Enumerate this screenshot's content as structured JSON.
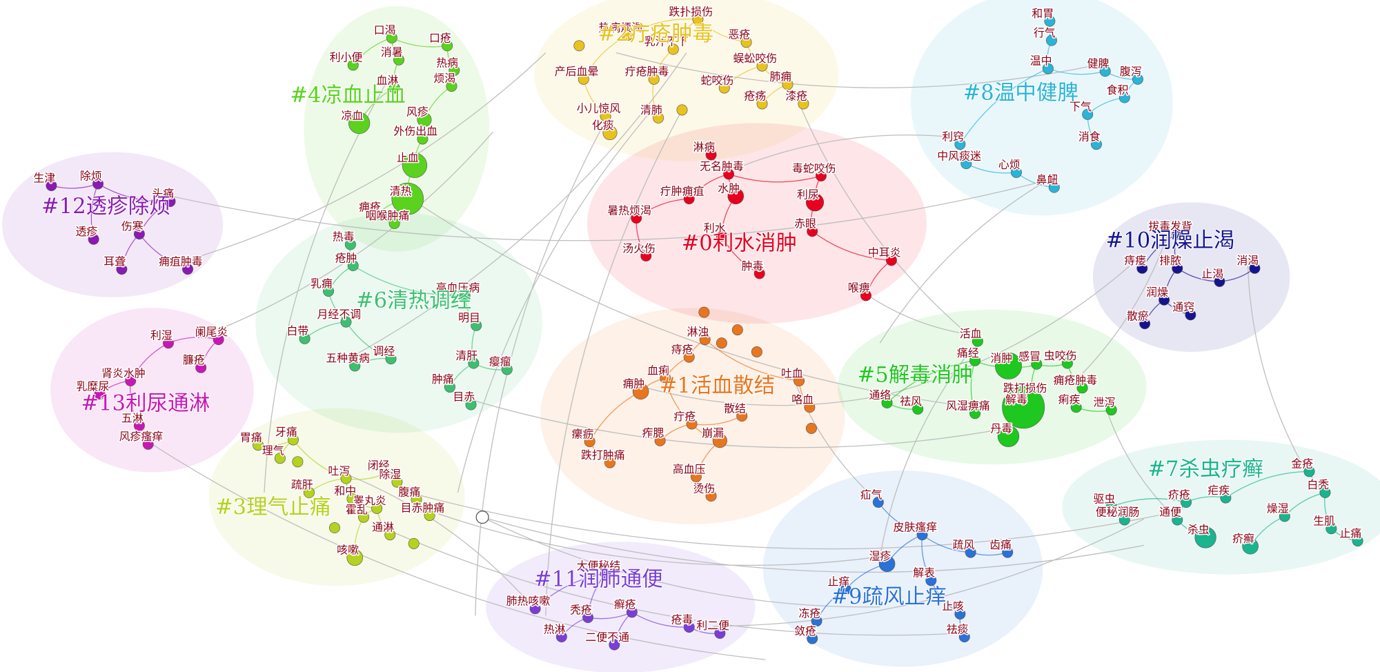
{
  "clusters": [
    {
      "label": "#0利水消肿",
      "color": "#e8001f",
      "nodes": [
        "淋病",
        "无名肿毒",
        "毒蛇咬伤",
        "疔肿痈疽",
        "水肿",
        "利尿",
        "暑热烦渴",
        "利水",
        "赤眼",
        "汤火伤",
        "中耳炎",
        "肿毒",
        "喉痹"
      ]
    },
    {
      "label": "#1活血散结",
      "color": "#e8761e",
      "nodes": [
        "淋浊",
        "痔疮",
        "血痢",
        "痈肿",
        "吐血",
        "咯血",
        "疔疮",
        "散结",
        "瘰疬",
        "痄腮",
        "崩漏",
        "跌打肿痛",
        "高血压",
        "烫伤"
      ]
    },
    {
      "label": "#2疔疮肿毒",
      "color": "#e8c21e",
      "nodes": [
        "跌扑损伤",
        "热病烦渴",
        "恶疮",
        "乳汁不下",
        "蜈蚣咬伤",
        "产后血晕",
        "疔疮肿毒",
        "肺痈",
        "蛇咬伤",
        "疮疡",
        "漆疮",
        "小儿惊风",
        "清肺",
        "化痰"
      ]
    },
    {
      "label": "#3理气止痛",
      "color": "#b4d21e",
      "nodes": [
        "胃痛",
        "牙痛",
        "理气",
        "吐泻",
        "闭经",
        "除湿",
        "疏肝",
        "和中",
        "腹痛",
        "睾丸炎",
        "霍乱",
        "目赤肿痛",
        "通淋",
        "咳嗽"
      ]
    },
    {
      "label": "#4凉血止血",
      "color": "#5ad21e",
      "nodes": [
        "口渴",
        "口疮",
        "利小便",
        "消暑",
        "热病",
        "血淋",
        "烦渴",
        "风疹",
        "凉血",
        "外伤出血",
        "止血",
        "清热",
        "痈疮",
        "咽喉肿痛"
      ]
    },
    {
      "label": "#5解毒消肿",
      "color": "#1ec81e",
      "nodes": [
        "活血",
        "痛经",
        "消肿",
        "感冒",
        "虫咬伤",
        "痈疮肿毒",
        "跌打损伤",
        "通络",
        "祛风",
        "风湿痹痛",
        "解毒",
        "痢疾",
        "泄泻",
        "丹毒"
      ]
    },
    {
      "label": "#6清热调经",
      "color": "#3cc070",
      "nodes": [
        "热毒",
        "疮肿",
        "高血压病",
        "乳痈",
        "月经不调",
        "明目",
        "白带",
        "调经",
        "五种黄病",
        "清肝",
        "瘿瘤",
        "肿痛",
        "目赤"
      ]
    },
    {
      "label": "#7杀虫疗癣",
      "color": "#1ab48e",
      "nodes": [
        "金疮",
        "疟疾",
        "疥疮",
        "白秃",
        "驱虫",
        "便秘润肠",
        "通便",
        "燥湿",
        "杀虫",
        "疥癣",
        "生肌",
        "止痛"
      ]
    },
    {
      "label": "#8温中健脾",
      "color": "#2ab4d6",
      "nodes": [
        "和胃",
        "行气",
        "温中",
        "健脾",
        "腹泻",
        "食积",
        "下气",
        "利窍",
        "消食",
        "中风痰迷",
        "心烦",
        "鼻衄"
      ]
    },
    {
      "label": "#9疏风止痒",
      "color": "#2a72d6",
      "nodes": [
        "疝气",
        "皮肤瘙痒",
        "湿疹",
        "疏风",
        "齿痛",
        "解表",
        "止痒",
        "冻疮",
        "止咳",
        "敛疮",
        "祛痰"
      ]
    },
    {
      "label": "#10润燥止渴",
      "color": "#141490",
      "nodes": [
        "拔毒发背",
        "痔瘘",
        "排脓",
        "止渴",
        "消渴",
        "润燥",
        "通窍",
        "散瘀"
      ]
    },
    {
      "label": "#11润肺通便",
      "color": "#7a3ed6",
      "nodes": [
        "大便秘结",
        "肺热咳嗽",
        "秃疮",
        "癣疮",
        "疮毒",
        "热淋",
        "二便不通",
        "利二便"
      ]
    },
    {
      "label": "#12透疹除烦",
      "color": "#8a1ab4",
      "nodes": [
        "生津",
        "除烦",
        "头痛",
        "透疹",
        "伤寒",
        "耳聋",
        "痈疽肿毒"
      ]
    },
    {
      "label": "#13利尿通淋",
      "color": "#c818b4",
      "nodes": [
        "阑尾炎",
        "利湿",
        "臁疮",
        "肾炎水肿",
        "乳糜尿",
        "五淋",
        "风疹瘙痒"
      ]
    }
  ]
}
